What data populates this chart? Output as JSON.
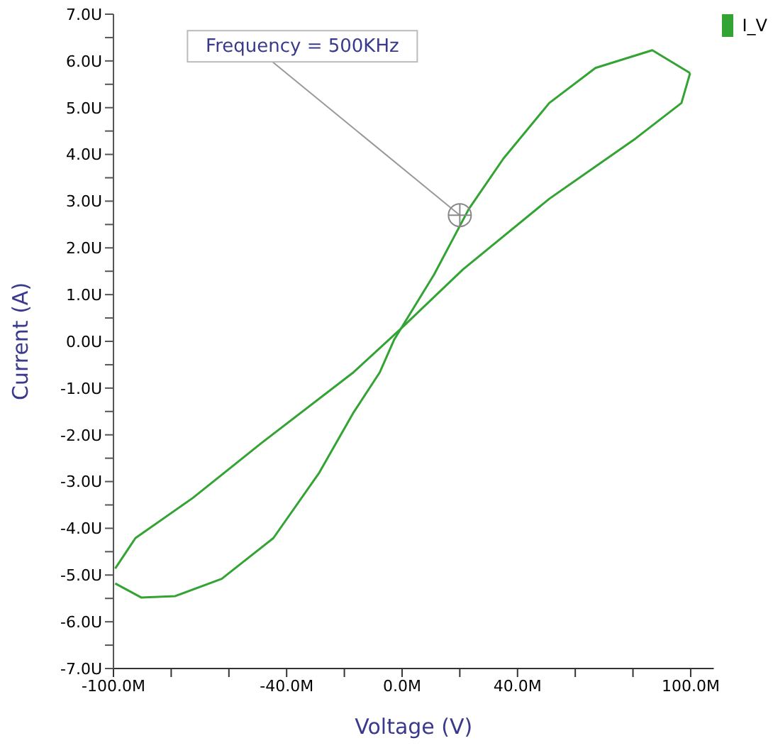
{
  "chart_data": {
    "type": "line",
    "xlabel": "Voltage (V)",
    "ylabel": "Current (A)",
    "xlim": [
      -100,
      108
    ],
    "xticks": [
      {
        "value": -100,
        "label": "-100.0M"
      },
      {
        "value": -80,
        "label": null
      },
      {
        "value": -60,
        "label": null
      },
      {
        "value": -40,
        "label": "-40.0M"
      },
      {
        "value": -20,
        "label": null
      },
      {
        "value": 0,
        "label": "0.0M"
      },
      {
        "value": 20,
        "label": null
      },
      {
        "value": 40,
        "label": "40.0M"
      },
      {
        "value": 60,
        "label": null
      },
      {
        "value": 80,
        "label": null
      },
      {
        "value": 100,
        "label": "100.0M"
      }
    ],
    "ylim": [
      -7,
      7
    ],
    "yticks": [
      {
        "value": -7,
        "label": "-7.0U"
      },
      {
        "value": -6.5,
        "label": null
      },
      {
        "value": -6,
        "label": "-6.0U"
      },
      {
        "value": -5.5,
        "label": null
      },
      {
        "value": -5,
        "label": "-5.0U"
      },
      {
        "value": -4.5,
        "label": null
      },
      {
        "value": -4,
        "label": "-4.0U"
      },
      {
        "value": -3.5,
        "label": null
      },
      {
        "value": -3,
        "label": "-3.0U"
      },
      {
        "value": -2.5,
        "label": null
      },
      {
        "value": -2,
        "label": "-2.0U"
      },
      {
        "value": -1.5,
        "label": null
      },
      {
        "value": -1,
        "label": "-1.0U"
      },
      {
        "value": -0.5,
        "label": null
      },
      {
        "value": 0,
        "label": "0.0U"
      },
      {
        "value": 0.5,
        "label": null
      },
      {
        "value": 1,
        "label": "1.0U"
      },
      {
        "value": 1.5,
        "label": null
      },
      {
        "value": 2,
        "label": "2.0U"
      },
      {
        "value": 2.5,
        "label": null
      },
      {
        "value": 3,
        "label": "3.0U"
      },
      {
        "value": 3.5,
        "label": null
      },
      {
        "value": 4,
        "label": "4.0U"
      },
      {
        "value": 4.5,
        "label": null
      },
      {
        "value": 5,
        "label": "5.0U"
      },
      {
        "value": 5.5,
        "label": null
      },
      {
        "value": 6,
        "label": "6.0U"
      },
      {
        "value": 6.5,
        "label": null
      },
      {
        "value": 7,
        "label": "7.0U"
      }
    ],
    "legend": "top right",
    "marker": "none",
    "grid": false,
    "annotations": [
      {
        "text": "Frequency = 500KHz",
        "x": 20,
        "y": 2.7
      }
    ],
    "series": [
      {
        "name": "I_V",
        "color": "#33a333",
        "x": [
          -99.4,
          -90.4,
          -78.6,
          -62.5,
          -44.6,
          -28.7,
          -16.8,
          -7.7,
          -2.8,
          11.1,
          23.1,
          35.1,
          51,
          67,
          86.7,
          99.8
        ],
        "values": [
          -5.18,
          -5.48,
          -5.45,
          -5.08,
          -4.21,
          -2.81,
          -1.52,
          -0.66,
          0.03,
          1.43,
          2.83,
          3.91,
          5.1,
          5.85,
          6.23,
          5.74
        ]
      },
      {
        "color": "#33a333",
        "x": [
          -99.4,
          -92.4,
          -72.5,
          -48.6,
          -16.8,
          -0.8,
          21.1,
          51,
          80.9,
          96.8,
          99.8
        ],
        "values": [
          -4.86,
          -4.21,
          -3.35,
          -2.17,
          -0.66,
          0.25,
          1.54,
          3.05,
          4.34,
          5.1,
          5.74
        ]
      }
    ]
  }
}
